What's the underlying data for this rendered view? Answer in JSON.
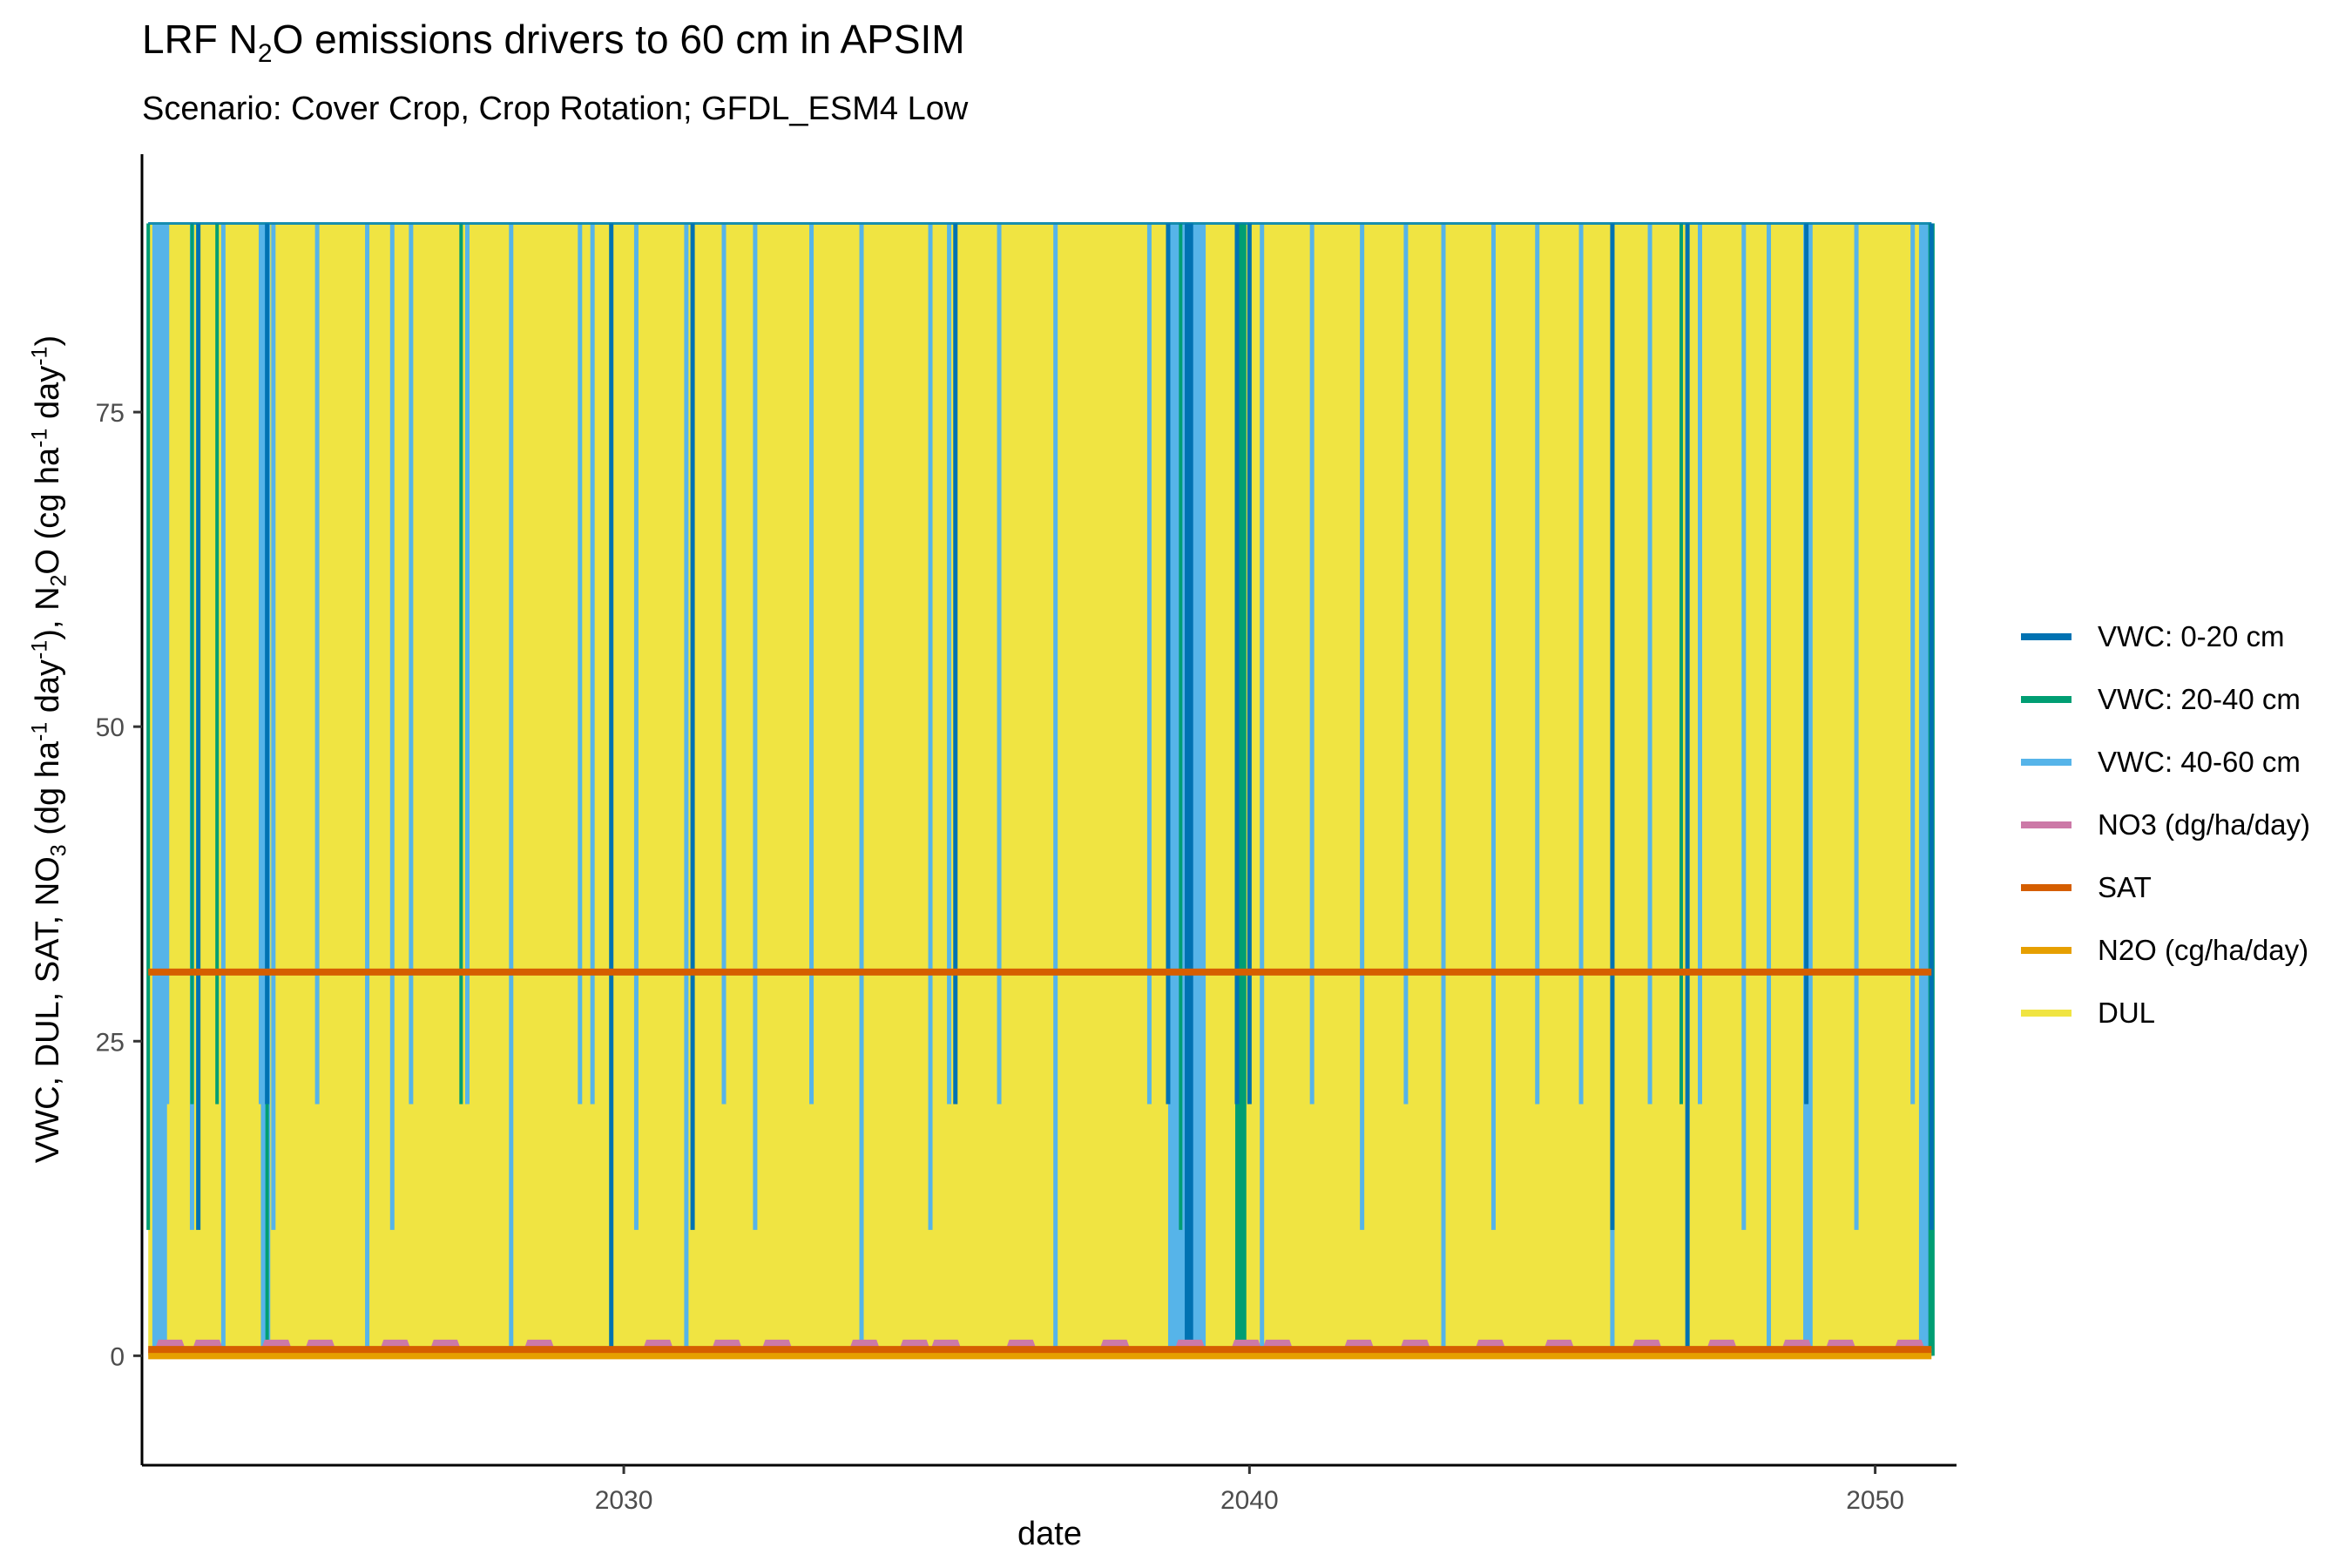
{
  "chart_data": {
    "type": "line",
    "title_parts": {
      "pre": "LRF N",
      "sub": "2",
      "post": "O emissions drivers to 60 cm in APSIM"
    },
    "subtitle": "Scenario: Cover Crop, Crop Rotation; GFDL_ESM4 Low",
    "xlabel": "date",
    "ylabel_parts": [
      "VWC, DUL, SAT, NO",
      "3",
      " (dg ha",
      "-1",
      " day",
      "-1",
      "), N",
      "2",
      "O  (cg ha",
      "-1",
      " day",
      "-1",
      ")"
    ],
    "xlim": [
      2022.3,
      2051.3
    ],
    "ylim": [
      -8.7,
      95.5
    ],
    "x_ticks": [
      2030,
      2040,
      2050
    ],
    "y_ticks": [
      0,
      25,
      50,
      75
    ],
    "x_tick_labels": [
      "2030",
      "2040",
      "2050"
    ],
    "y_tick_labels": [
      "0",
      "25",
      "50",
      "75"
    ],
    "data_range": [
      2022.4,
      2050.9
    ],
    "legend_position": "right",
    "grid": false,
    "series": [
      {
        "name": "VWC: 0-20 cm",
        "color": "#0072B2",
        "spikes": [
          2023.2,
          2024.3,
          2029.8,
          2031.1,
          2035.3,
          2038.7,
          2039.0,
          2039.8,
          2040.0,
          2045.8,
          2047.0,
          2048.9,
          2050.9
        ],
        "low_bands": [
          [
            2039.0,
            2039.1
          ]
        ]
      },
      {
        "name": "VWC: 20-40 cm",
        "color": "#009E73",
        "spikes": [
          2022.4,
          2023.1,
          2023.5,
          2024.3,
          2027.4,
          2035.3,
          2038.9,
          2039.8,
          2040.0,
          2045.8,
          2046.9,
          2050.9
        ],
        "low_bands": [
          [
            2039.8,
            2039.95
          ],
          [
            2050.85,
            2050.95
          ]
        ]
      },
      {
        "name": "VWC: 40-60 cm",
        "color": "#56B4E9",
        "spikes": [
          2022.5,
          2022.6,
          2022.7,
          2023.1,
          2023.6,
          2024.2,
          2024.4,
          2025.1,
          2025.9,
          2026.3,
          2026.6,
          2027.5,
          2028.2,
          2029.3,
          2029.5,
          2030.2,
          2031.0,
          2031.6,
          2032.1,
          2033.0,
          2033.8,
          2034.9,
          2035.2,
          2036.0,
          2036.9,
          2038.4,
          2038.8,
          2039.1,
          2040.2,
          2041.0,
          2041.8,
          2042.5,
          2043.1,
          2043.9,
          2044.6,
          2045.3,
          2045.8,
          2046.4,
          2047.2,
          2047.9,
          2048.3,
          2048.9,
          2049.7,
          2050.6,
          2050.8
        ],
        "low_bands": [
          [
            2022.5,
            2022.7
          ],
          [
            2024.2,
            2024.35
          ],
          [
            2038.7,
            2039.3
          ],
          [
            2048.85,
            2049.0
          ],
          [
            2050.7,
            2050.9
          ]
        ]
      },
      {
        "name": "NO3 (dg/ha/day)",
        "color": "#CC79A7",
        "baseline": 0.3,
        "bumps": [
          2022.7,
          2023.3,
          2024.4,
          2025.1,
          2026.3,
          2027.1,
          2028.6,
          2030.5,
          2031.6,
          2032.4,
          2033.8,
          2034.6,
          2035.1,
          2036.3,
          2037.8,
          2039.0,
          2039.9,
          2040.4,
          2041.7,
          2042.6,
          2043.8,
          2044.9,
          2046.3,
          2047.5,
          2048.7,
          2049.4,
          2050.5
        ],
        "bump_height": 1.0
      },
      {
        "name": "SAT",
        "color": "#D55E00",
        "levels": [
          {
            "x0": 2022.4,
            "x1": 2050.9,
            "y": 30.5
          },
          {
            "x0": 2022.4,
            "x1": 2050.9,
            "y": 0.5
          }
        ]
      },
      {
        "name": "N2O (cg/ha/day)",
        "color": "#E69F00",
        "levels": [
          {
            "x0": 2022.4,
            "x1": 2050.9,
            "y": 0.0
          }
        ]
      },
      {
        "name": "DUL",
        "color": "#F0E442",
        "fill_range": [
          0,
          90
        ]
      }
    ]
  }
}
